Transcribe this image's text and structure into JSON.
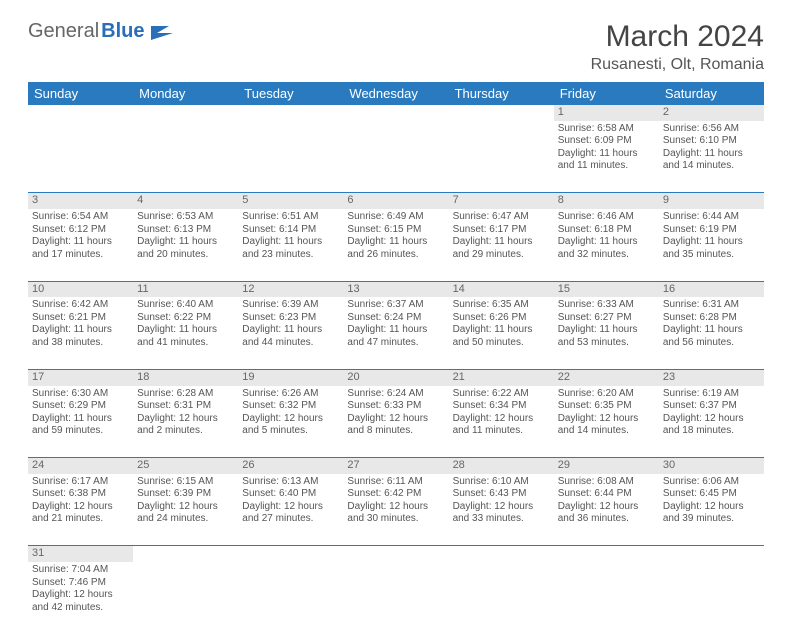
{
  "logo": {
    "text1": "General",
    "text2": "Blue"
  },
  "title": "March 2024",
  "location": "Rusanesti, Olt, Romania",
  "colors": {
    "header_bg": "#2a7abf",
    "header_text": "#ffffff",
    "daynum_bg": "#e8e8e8",
    "border": "#2a7abf"
  },
  "day_headers": [
    "Sunday",
    "Monday",
    "Tuesday",
    "Wednesday",
    "Thursday",
    "Friday",
    "Saturday"
  ],
  "weeks": [
    {
      "nums": [
        "",
        "",
        "",
        "",
        "",
        "1",
        "2"
      ],
      "cells": [
        null,
        null,
        null,
        null,
        null,
        {
          "sunrise": "Sunrise: 6:58 AM",
          "sunset": "Sunset: 6:09 PM",
          "day1": "Daylight: 11 hours",
          "day2": "and 11 minutes."
        },
        {
          "sunrise": "Sunrise: 6:56 AM",
          "sunset": "Sunset: 6:10 PM",
          "day1": "Daylight: 11 hours",
          "day2": "and 14 minutes."
        }
      ]
    },
    {
      "nums": [
        "3",
        "4",
        "5",
        "6",
        "7",
        "8",
        "9"
      ],
      "cells": [
        {
          "sunrise": "Sunrise: 6:54 AM",
          "sunset": "Sunset: 6:12 PM",
          "day1": "Daylight: 11 hours",
          "day2": "and 17 minutes."
        },
        {
          "sunrise": "Sunrise: 6:53 AM",
          "sunset": "Sunset: 6:13 PM",
          "day1": "Daylight: 11 hours",
          "day2": "and 20 minutes."
        },
        {
          "sunrise": "Sunrise: 6:51 AM",
          "sunset": "Sunset: 6:14 PM",
          "day1": "Daylight: 11 hours",
          "day2": "and 23 minutes."
        },
        {
          "sunrise": "Sunrise: 6:49 AM",
          "sunset": "Sunset: 6:15 PM",
          "day1": "Daylight: 11 hours",
          "day2": "and 26 minutes."
        },
        {
          "sunrise": "Sunrise: 6:47 AM",
          "sunset": "Sunset: 6:17 PM",
          "day1": "Daylight: 11 hours",
          "day2": "and 29 minutes."
        },
        {
          "sunrise": "Sunrise: 6:46 AM",
          "sunset": "Sunset: 6:18 PM",
          "day1": "Daylight: 11 hours",
          "day2": "and 32 minutes."
        },
        {
          "sunrise": "Sunrise: 6:44 AM",
          "sunset": "Sunset: 6:19 PM",
          "day1": "Daylight: 11 hours",
          "day2": "and 35 minutes."
        }
      ]
    },
    {
      "nums": [
        "10",
        "11",
        "12",
        "13",
        "14",
        "15",
        "16"
      ],
      "cells": [
        {
          "sunrise": "Sunrise: 6:42 AM",
          "sunset": "Sunset: 6:21 PM",
          "day1": "Daylight: 11 hours",
          "day2": "and 38 minutes."
        },
        {
          "sunrise": "Sunrise: 6:40 AM",
          "sunset": "Sunset: 6:22 PM",
          "day1": "Daylight: 11 hours",
          "day2": "and 41 minutes."
        },
        {
          "sunrise": "Sunrise: 6:39 AM",
          "sunset": "Sunset: 6:23 PM",
          "day1": "Daylight: 11 hours",
          "day2": "and 44 minutes."
        },
        {
          "sunrise": "Sunrise: 6:37 AM",
          "sunset": "Sunset: 6:24 PM",
          "day1": "Daylight: 11 hours",
          "day2": "and 47 minutes."
        },
        {
          "sunrise": "Sunrise: 6:35 AM",
          "sunset": "Sunset: 6:26 PM",
          "day1": "Daylight: 11 hours",
          "day2": "and 50 minutes."
        },
        {
          "sunrise": "Sunrise: 6:33 AM",
          "sunset": "Sunset: 6:27 PM",
          "day1": "Daylight: 11 hours",
          "day2": "and 53 minutes."
        },
        {
          "sunrise": "Sunrise: 6:31 AM",
          "sunset": "Sunset: 6:28 PM",
          "day1": "Daylight: 11 hours",
          "day2": "and 56 minutes."
        }
      ]
    },
    {
      "nums": [
        "17",
        "18",
        "19",
        "20",
        "21",
        "22",
        "23"
      ],
      "cells": [
        {
          "sunrise": "Sunrise: 6:30 AM",
          "sunset": "Sunset: 6:29 PM",
          "day1": "Daylight: 11 hours",
          "day2": "and 59 minutes."
        },
        {
          "sunrise": "Sunrise: 6:28 AM",
          "sunset": "Sunset: 6:31 PM",
          "day1": "Daylight: 12 hours",
          "day2": "and 2 minutes."
        },
        {
          "sunrise": "Sunrise: 6:26 AM",
          "sunset": "Sunset: 6:32 PM",
          "day1": "Daylight: 12 hours",
          "day2": "and 5 minutes."
        },
        {
          "sunrise": "Sunrise: 6:24 AM",
          "sunset": "Sunset: 6:33 PM",
          "day1": "Daylight: 12 hours",
          "day2": "and 8 minutes."
        },
        {
          "sunrise": "Sunrise: 6:22 AM",
          "sunset": "Sunset: 6:34 PM",
          "day1": "Daylight: 12 hours",
          "day2": "and 11 minutes."
        },
        {
          "sunrise": "Sunrise: 6:20 AM",
          "sunset": "Sunset: 6:35 PM",
          "day1": "Daylight: 12 hours",
          "day2": "and 14 minutes."
        },
        {
          "sunrise": "Sunrise: 6:19 AM",
          "sunset": "Sunset: 6:37 PM",
          "day1": "Daylight: 12 hours",
          "day2": "and 18 minutes."
        }
      ]
    },
    {
      "nums": [
        "24",
        "25",
        "26",
        "27",
        "28",
        "29",
        "30"
      ],
      "cells": [
        {
          "sunrise": "Sunrise: 6:17 AM",
          "sunset": "Sunset: 6:38 PM",
          "day1": "Daylight: 12 hours",
          "day2": "and 21 minutes."
        },
        {
          "sunrise": "Sunrise: 6:15 AM",
          "sunset": "Sunset: 6:39 PM",
          "day1": "Daylight: 12 hours",
          "day2": "and 24 minutes."
        },
        {
          "sunrise": "Sunrise: 6:13 AM",
          "sunset": "Sunset: 6:40 PM",
          "day1": "Daylight: 12 hours",
          "day2": "and 27 minutes."
        },
        {
          "sunrise": "Sunrise: 6:11 AM",
          "sunset": "Sunset: 6:42 PM",
          "day1": "Daylight: 12 hours",
          "day2": "and 30 minutes."
        },
        {
          "sunrise": "Sunrise: 6:10 AM",
          "sunset": "Sunset: 6:43 PM",
          "day1": "Daylight: 12 hours",
          "day2": "and 33 minutes."
        },
        {
          "sunrise": "Sunrise: 6:08 AM",
          "sunset": "Sunset: 6:44 PM",
          "day1": "Daylight: 12 hours",
          "day2": "and 36 minutes."
        },
        {
          "sunrise": "Sunrise: 6:06 AM",
          "sunset": "Sunset: 6:45 PM",
          "day1": "Daylight: 12 hours",
          "day2": "and 39 minutes."
        }
      ]
    },
    {
      "nums": [
        "31",
        "",
        "",
        "",
        "",
        "",
        ""
      ],
      "cells": [
        {
          "sunrise": "Sunrise: 7:04 AM",
          "sunset": "Sunset: 7:46 PM",
          "day1": "Daylight: 12 hours",
          "day2": "and 42 minutes."
        },
        null,
        null,
        null,
        null,
        null,
        null
      ]
    }
  ]
}
